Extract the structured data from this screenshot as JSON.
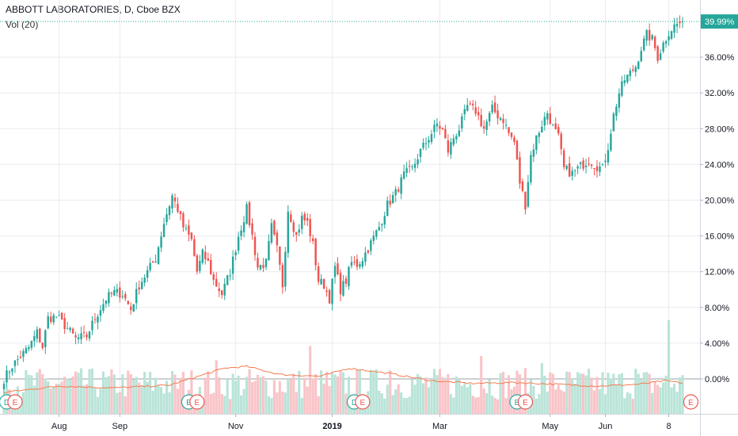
{
  "header": {
    "title": "ABBOTT LABORATORIES, D, Cboe BZX",
    "volume_label": "Vol (20)"
  },
  "colors": {
    "up": "#26a69a",
    "down": "#ef5350",
    "vol_up": "#b9e4d8",
    "vol_down": "#f9c4c8",
    "vol_ma": "#f57c4f",
    "grid": "#e8ebef",
    "last_price_bg": "#26a69a"
  },
  "chart_data": {
    "type": "candlestick",
    "y_axis_unit": "%",
    "ylim": [
      -4,
      42
    ],
    "y_ticks": [
      "36.00%",
      "32.00%",
      "28.00%",
      "24.00%",
      "20.00%",
      "16.00%",
      "12.00%",
      "8.00%",
      "4.00%",
      "0.00%"
    ],
    "y_tick_values": [
      36,
      32,
      28,
      24,
      20,
      16,
      12,
      8,
      4,
      0
    ],
    "last_price": 39.99,
    "last_price_label": "39.99%",
    "x_ticks": [
      {
        "label": "Aug",
        "day": 20,
        "bold": false
      },
      {
        "label": "Sep",
        "day": 42,
        "bold": false
      },
      {
        "label": "Nov",
        "day": 84,
        "bold": false
      },
      {
        "label": "2019",
        "day": 119,
        "bold": true
      },
      {
        "label": "Mar",
        "day": 158,
        "bold": false
      },
      {
        "label": "May",
        "day": 198,
        "bold": false
      },
      {
        "label": "Jun",
        "day": 218,
        "bold": false
      },
      {
        "label": "8",
        "day": 241,
        "bold": false
      }
    ],
    "total_days": 247,
    "keypoints": [
      [
        0,
        0
      ],
      [
        3,
        1.5
      ],
      [
        6,
        2.5
      ],
      [
        9,
        3.5
      ],
      [
        12,
        5.2
      ],
      [
        14,
        3.6
      ],
      [
        16,
        6.8
      ],
      [
        19,
        7
      ],
      [
        22,
        6
      ],
      [
        26,
        4.5
      ],
      [
        30,
        4.8
      ],
      [
        33,
        6.8
      ],
      [
        37,
        9
      ],
      [
        40,
        9.7
      ],
      [
        43,
        9.5
      ],
      [
        46,
        7.8
      ],
      [
        49,
        10.5
      ],
      [
        52,
        12
      ],
      [
        55,
        13.5
      ],
      [
        58,
        17.5
      ],
      [
        61,
        20.5
      ],
      [
        63,
        19
      ],
      [
        65,
        17
      ],
      [
        68,
        15.5
      ],
      [
        70,
        12
      ],
      [
        72,
        14
      ],
      [
        74,
        13
      ],
      [
        76,
        11
      ],
      [
        79,
        9.5
      ],
      [
        82,
        12
      ],
      [
        85,
        16
      ],
      [
        88,
        19
      ],
      [
        90,
        16
      ],
      [
        92,
        12.5
      ],
      [
        95,
        13
      ],
      [
        97,
        17
      ],
      [
        99,
        14.5
      ],
      [
        101,
        10.5
      ],
      [
        103,
        19
      ],
      [
        106,
        16
      ],
      [
        108,
        18
      ],
      [
        110,
        17.5
      ],
      [
        112,
        15
      ],
      [
        114,
        11
      ],
      [
        116,
        10.5
      ],
      [
        118,
        9
      ],
      [
        120,
        12.5
      ],
      [
        122,
        10
      ],
      [
        124,
        11
      ],
      [
        126,
        13
      ],
      [
        128,
        12.8
      ],
      [
        130,
        13.5
      ],
      [
        133,
        15.2
      ],
      [
        136,
        17
      ],
      [
        139,
        19.5
      ],
      [
        142,
        20.8
      ],
      [
        145,
        22.8
      ],
      [
        148,
        23.5
      ],
      [
        151,
        25.5
      ],
      [
        154,
        27
      ],
      [
        157,
        28.5
      ],
      [
        159,
        27.8
      ],
      [
        161,
        25.5
      ],
      [
        163,
        27
      ],
      [
        165,
        28
      ],
      [
        168,
        30.5
      ],
      [
        171,
        30
      ],
      [
        174,
        28
      ],
      [
        177,
        30.2
      ],
      [
        179,
        29.5
      ],
      [
        181,
        29
      ],
      [
        183,
        27.5
      ],
      [
        185,
        26.5
      ],
      [
        187,
        22
      ],
      [
        189,
        19.5
      ],
      [
        191,
        25
      ],
      [
        193,
        27
      ],
      [
        195,
        28.5
      ],
      [
        197,
        29.8
      ],
      [
        199,
        28.2
      ],
      [
        201,
        27
      ],
      [
        203,
        23.5
      ],
      [
        206,
        23
      ],
      [
        209,
        23.8
      ],
      [
        212,
        24.5
      ],
      [
        215,
        23.8
      ],
      [
        217,
        23.5
      ],
      [
        219,
        26
      ],
      [
        221,
        29.5
      ],
      [
        223,
        32
      ],
      [
        225,
        33.5
      ],
      [
        227,
        34.2
      ],
      [
        229,
        35
      ],
      [
        231,
        37
      ],
      [
        233,
        38.5
      ],
      [
        235,
        38
      ],
      [
        237,
        36
      ],
      [
        239,
        37.5
      ],
      [
        241,
        38.8
      ],
      [
        243,
        39.5
      ],
      [
        246,
        39.99
      ]
    ],
    "ma_keypoints": [
      [
        0,
        -1.5
      ],
      [
        20,
        -0.8
      ],
      [
        40,
        -1.0
      ],
      [
        60,
        -0.7
      ],
      [
        80,
        1.2
      ],
      [
        88,
        1.4
      ],
      [
        100,
        0.5
      ],
      [
        115,
        0.3
      ],
      [
        125,
        1.2
      ],
      [
        140,
        0.6
      ],
      [
        155,
        -0.2
      ],
      [
        170,
        -0.5
      ],
      [
        185,
        -0.4
      ],
      [
        200,
        -0.6
      ],
      [
        215,
        -0.8
      ],
      [
        230,
        -0.6
      ],
      [
        240,
        -0.2
      ],
      [
        247,
        -0.5
      ]
    ],
    "vol_spikes": [
      [
        111,
        4.2
      ],
      [
        140,
        2.5
      ],
      [
        173,
        3.5
      ],
      [
        195,
        3.0
      ],
      [
        241,
        6.0
      ],
      [
        229,
        2.6
      ],
      [
        77,
        3.2
      ],
      [
        117,
        2.4
      ],
      [
        62,
        2.2
      ]
    ],
    "earnings_markers": [
      {
        "day": 1,
        "letter": "D",
        "color": "#26a69a"
      },
      {
        "day": 4,
        "letter": "E",
        "color": "#ef5350"
      },
      {
        "day": 67,
        "letter": "E",
        "color": "#26a69a"
      },
      {
        "day": 70,
        "letter": "E",
        "color": "#ef5350"
      },
      {
        "day": 127,
        "letter": "D",
        "color": "#26a69a"
      },
      {
        "day": 130,
        "letter": "E",
        "color": "#ef5350"
      },
      {
        "day": 186,
        "letter": "E",
        "color": "#26a69a"
      },
      {
        "day": 189,
        "letter": "E",
        "color": "#ef5350"
      },
      {
        "day": 249,
        "letter": "E",
        "color": "#ef5350"
      }
    ]
  }
}
